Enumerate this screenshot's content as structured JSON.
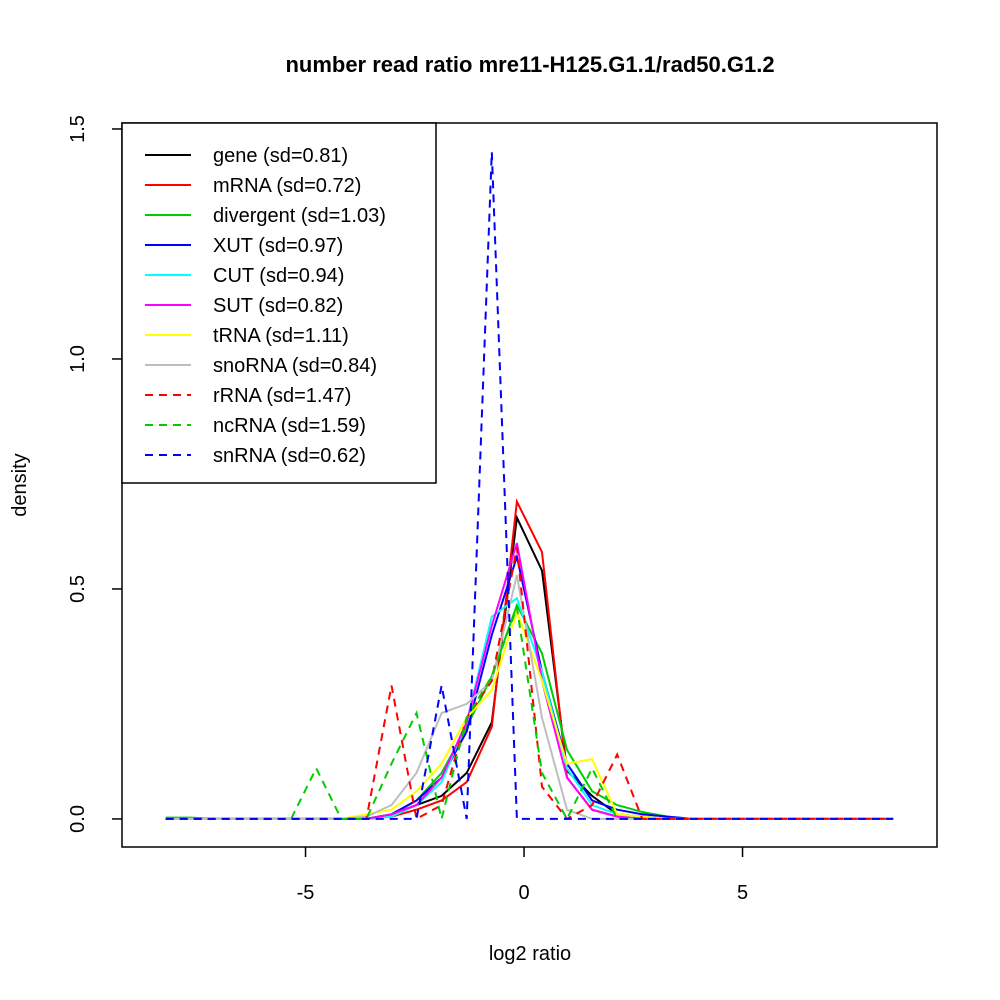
{
  "chart_data": {
    "type": "line",
    "title": "number read ratio mre11-H125.G1.1/rad50.G1.2",
    "xlabel": "log2 ratio",
    "ylabel": "density",
    "xlim": [
      -9.2,
      9.45
    ],
    "ylim": [
      -0.061,
      1.513
    ],
    "xticks": [
      "-5",
      "0",
      "5"
    ],
    "xtick_values": [
      -5,
      0,
      5
    ],
    "yticks": [
      "0.0",
      "0.5",
      "1.0",
      "1.5"
    ],
    "ytick_values": [
      0,
      0.5,
      1.0,
      1.5
    ],
    "legend_position": "top-left",
    "x_start": -8.2,
    "x_step": 0.574,
    "series": [
      {
        "name": "gene (sd=0.81)",
        "color": "#000000",
        "dashed": false,
        "values": [
          0,
          0,
          0,
          0,
          0,
          0,
          0,
          0,
          0,
          0.01,
          0.03,
          0.05,
          0.1,
          0.21,
          0.655,
          0.54,
          0.105,
          0.05,
          0.01,
          0.005,
          0,
          0,
          0,
          0,
          0,
          0,
          0,
          0,
          0,
          0
        ]
      },
      {
        "name": "mRNA (sd=0.72)",
        "color": "#ff0000",
        "dashed": false,
        "values": [
          0,
          0,
          0,
          0,
          0,
          0,
          0,
          0,
          0,
          0.005,
          0.02,
          0.04,
          0.08,
          0.2,
          0.69,
          0.58,
          0.09,
          0.02,
          0.005,
          0,
          0,
          0,
          0,
          0,
          0,
          0,
          0,
          0,
          0,
          0
        ]
      },
      {
        "name": "divergent (sd=1.03)",
        "color": "#00cd00",
        "dashed": false,
        "values": [
          0.003,
          0.003,
          0,
          0,
          0,
          0,
          0,
          0,
          0,
          0.01,
          0.04,
          0.1,
          0.2,
          0.31,
          0.465,
          0.36,
          0.15,
          0.06,
          0.03,
          0.015,
          0.005,
          0,
          0,
          0,
          0,
          0,
          0,
          0,
          0,
          0
        ]
      },
      {
        "name": "XUT (sd=0.97)",
        "color": "#0000ff",
        "dashed": false,
        "values": [
          0,
          0,
          0,
          0,
          0,
          0,
          0,
          0,
          0,
          0.01,
          0.04,
          0.09,
          0.19,
          0.4,
          0.57,
          0.32,
          0.12,
          0.04,
          0.02,
          0.01,
          0.005,
          0,
          0,
          0,
          0,
          0,
          0,
          0,
          0,
          0
        ]
      },
      {
        "name": "CUT (sd=0.94)",
        "color": "#00ffff",
        "dashed": false,
        "values": [
          0,
          0,
          0,
          0,
          0,
          0,
          0,
          0,
          0,
          0.005,
          0.03,
          0.08,
          0.21,
          0.44,
          0.48,
          0.32,
          0.11,
          0.03,
          0.01,
          0.005,
          0,
          0,
          0,
          0,
          0,
          0,
          0,
          0,
          0,
          0
        ]
      },
      {
        "name": "SUT (sd=0.82)",
        "color": "#ff00ff",
        "dashed": false,
        "values": [
          0,
          0,
          0,
          0,
          0,
          0,
          0,
          0,
          0,
          0.01,
          0.03,
          0.09,
          0.21,
          0.42,
          0.6,
          0.3,
          0.09,
          0.02,
          0.005,
          0,
          0,
          0,
          0,
          0,
          0,
          0,
          0,
          0,
          0,
          0
        ]
      },
      {
        "name": "tRNA (sd=1.11)",
        "color": "#ffff00",
        "dashed": false,
        "values": [
          0,
          0,
          0,
          0,
          0,
          0,
          0,
          0,
          0.01,
          0.02,
          0.06,
          0.12,
          0.22,
          0.28,
          0.45,
          0.3,
          0.12,
          0.13,
          0.01,
          0.005,
          0,
          0,
          0,
          0,
          0,
          0,
          0,
          0,
          0,
          0
        ]
      },
      {
        "name": "snoRNA (sd=0.84)",
        "color": "#bebebe",
        "dashed": false,
        "values": [
          0,
          0,
          0,
          0,
          0,
          0,
          0,
          0,
          0.005,
          0.03,
          0.1,
          0.23,
          0.25,
          0.3,
          0.53,
          0.22,
          0.02,
          0,
          0,
          0,
          0,
          0,
          0,
          0,
          0,
          0,
          0,
          0,
          0,
          0
        ]
      },
      {
        "name": "rRNA (sd=1.47)",
        "color": "#ff0000",
        "dashed": true,
        "values": [
          0,
          0,
          0,
          0,
          0,
          0,
          0,
          0,
          0,
          0.29,
          0,
          0.03,
          0.22,
          0.3,
          0.59,
          0.07,
          0,
          0.03,
          0.14,
          0,
          0,
          0,
          0,
          0,
          0,
          0,
          0,
          0,
          0,
          0
        ]
      },
      {
        "name": "ncRNA (sd=1.59)",
        "color": "#00cd00",
        "dashed": true,
        "values": [
          0,
          0,
          0,
          0,
          0,
          0,
          0.11,
          0,
          0,
          0.12,
          0.23,
          0,
          0.22,
          0.31,
          0.46,
          0.1,
          0,
          0.11,
          0,
          0,
          0,
          0,
          0,
          0,
          0,
          0,
          0,
          0,
          0,
          0
        ]
      },
      {
        "name": "snRNA (sd=0.62)",
        "color": "#0000ff",
        "dashed": true,
        "values": [
          0,
          0,
          0,
          0,
          0,
          0,
          0,
          0,
          0,
          0,
          0,
          0.29,
          0,
          1.45,
          0,
          0,
          0,
          0,
          0,
          0,
          0,
          0,
          0,
          0,
          0,
          0,
          0,
          0,
          0,
          0
        ]
      }
    ]
  }
}
